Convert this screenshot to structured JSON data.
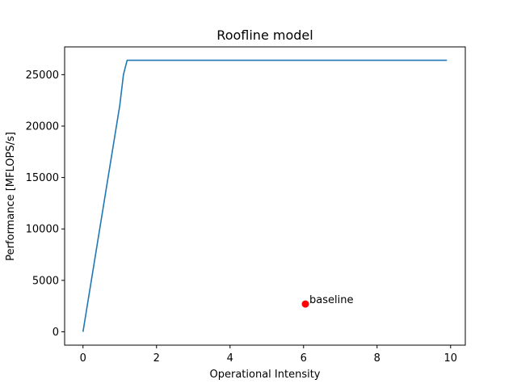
{
  "chart_data": {
    "type": "line",
    "title": "Roofline model",
    "xlabel": "Operational Intensity",
    "ylabel": "Performance [MFLOPS/s]",
    "xlim": [
      -0.5,
      10.4
    ],
    "ylim": [
      -1300,
      27700
    ],
    "xticks": [
      0,
      2,
      4,
      6,
      8,
      10
    ],
    "xtick_labels": [
      "0",
      "2",
      "4",
      "6",
      "8",
      "10"
    ],
    "yticks": [
      0,
      5000,
      10000,
      15000,
      20000,
      25000
    ],
    "ytick_labels": [
      "0",
      "5000",
      "10000",
      "15000",
      "20000",
      "25000"
    ],
    "grid": false,
    "series": [
      {
        "type": "line",
        "color": "#1f77b4",
        "x": [
          0,
          1.0,
          1.1,
          1.2,
          9.9
        ],
        "y": [
          0,
          22000,
          25000,
          26400,
          26400
        ]
      },
      {
        "type": "scatter",
        "color": "#ff0000",
        "x": [
          6.05
        ],
        "y": [
          2700
        ],
        "labels": [
          "baseline"
        ]
      }
    ]
  }
}
